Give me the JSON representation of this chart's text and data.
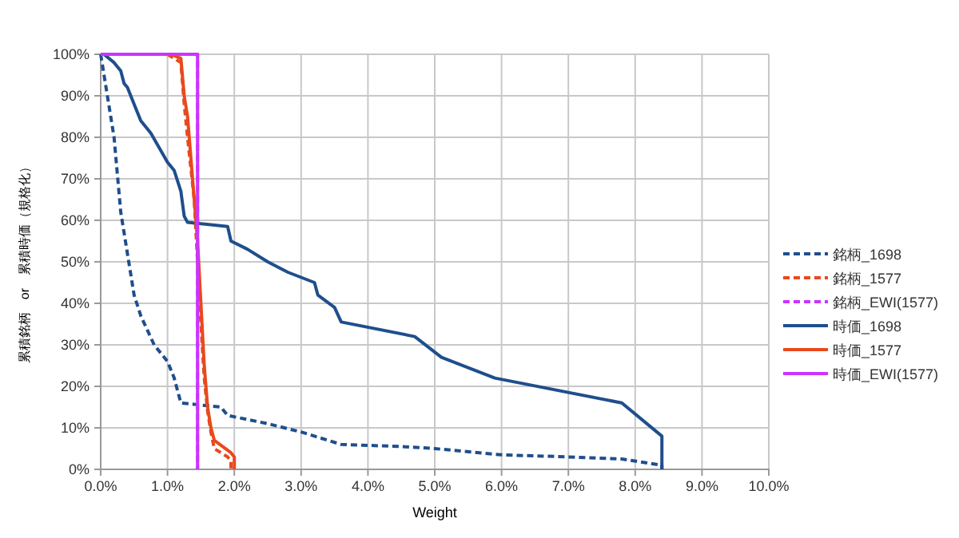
{
  "chart_data": {
    "type": "line",
    "xlabel": "Weight",
    "ylabel": "累積銘柄　or　累積時価（規格化）",
    "xlim": [
      0,
      10
    ],
    "ylim": [
      0,
      100
    ],
    "xticks": [
      {
        "value": 0,
        "label": "0.0%"
      },
      {
        "value": 1,
        "label": "1.0%"
      },
      {
        "value": 2,
        "label": "2.0%"
      },
      {
        "value": 3,
        "label": "3.0%"
      },
      {
        "value": 4,
        "label": "4.0%"
      },
      {
        "value": 5,
        "label": "5.0%"
      },
      {
        "value": 6,
        "label": "6.0%"
      },
      {
        "value": 7,
        "label": "7.0%"
      },
      {
        "value": 8,
        "label": "8.0%"
      },
      {
        "value": 9,
        "label": "9.0%"
      },
      {
        "value": 10,
        "label": "10.0%"
      }
    ],
    "yticks": [
      {
        "value": 0,
        "label": "0%"
      },
      {
        "value": 10,
        "label": "10%"
      },
      {
        "value": 20,
        "label": "20%"
      },
      {
        "value": 30,
        "label": "30%"
      },
      {
        "value": 40,
        "label": "40%"
      },
      {
        "value": 50,
        "label": "50%"
      },
      {
        "value": 60,
        "label": "60%"
      },
      {
        "value": 70,
        "label": "70%"
      },
      {
        "value": 80,
        "label": "80%"
      },
      {
        "value": 90,
        "label": "90%"
      },
      {
        "value": 100,
        "label": "100%"
      }
    ],
    "grid": true,
    "legend": "right",
    "marker": "none",
    "series": [
      {
        "name": "銘柄_1698",
        "color": "#1f4e8c",
        "line_style": "dashed",
        "x": [
          0,
          0.1,
          0.2,
          0.3,
          0.4,
          0.5,
          0.6,
          0.8,
          1.0,
          1.1,
          1.2,
          1.5,
          1.8,
          1.9,
          2.5,
          3.0,
          3.2,
          3.6,
          4.5,
          5.0,
          6.0,
          7.0,
          7.8,
          8.4,
          8.4
        ],
        "values": [
          100,
          90,
          80,
          62,
          52,
          42,
          37,
          30,
          26,
          22,
          16,
          15.5,
          15,
          13,
          11,
          9,
          8,
          6,
          5.5,
          5,
          3.5,
          3,
          2.5,
          1,
          0
        ]
      },
      {
        "name": "銘柄_1577",
        "color": "#e8491d",
        "line_style": "dashed",
        "x": [
          1.0,
          1.2,
          1.25,
          1.3,
          1.4,
          1.45,
          1.5,
          1.55,
          1.6,
          1.65,
          1.7,
          1.9,
          1.95,
          1.95
        ],
        "values": [
          100,
          98,
          88,
          80,
          65,
          50,
          35,
          22,
          14,
          9,
          5,
          3,
          2,
          0
        ]
      },
      {
        "name": "銘柄_EWI(1577)",
        "color": "#cc33ff",
        "line_style": "dashed",
        "x": [
          0,
          1.45,
          1.45
        ],
        "values": [
          100,
          100,
          0
        ]
      },
      {
        "name": "時価_1698",
        "color": "#1f4e8c",
        "line_style": "solid",
        "x": [
          0.05,
          0.2,
          0.3,
          0.35,
          0.4,
          0.5,
          0.6,
          0.75,
          1.0,
          1.1,
          1.2,
          1.25,
          1.3,
          1.9,
          1.95,
          2.2,
          2.5,
          2.8,
          3.2,
          3.25,
          3.5,
          3.6,
          4.7,
          5.1,
          5.9,
          7.8,
          8.4,
          8.4
        ],
        "values": [
          100,
          98,
          96,
          93,
          92,
          88,
          84,
          81,
          74,
          72,
          67,
          61,
          59.5,
          58.5,
          55,
          53,
          50,
          47.5,
          45,
          42,
          39,
          35.5,
          32,
          27,
          22,
          16,
          8,
          0
        ]
      },
      {
        "name": "時価_1577",
        "color": "#e8491d",
        "line_style": "solid",
        "x": [
          1.05,
          1.2,
          1.25,
          1.3,
          1.35,
          1.4,
          1.45,
          1.5,
          1.55,
          1.6,
          1.65,
          1.7,
          1.95,
          2.0,
          2.0
        ],
        "values": [
          100,
          99,
          90,
          85,
          75,
          65,
          55,
          40,
          25,
          15,
          10,
          7,
          4,
          3,
          0
        ]
      },
      {
        "name": "時価_EWI(1577)",
        "color": "#cc33ff",
        "line_style": "solid",
        "x": [
          0,
          1.45,
          1.45
        ],
        "values": [
          100,
          100,
          0
        ]
      }
    ]
  }
}
